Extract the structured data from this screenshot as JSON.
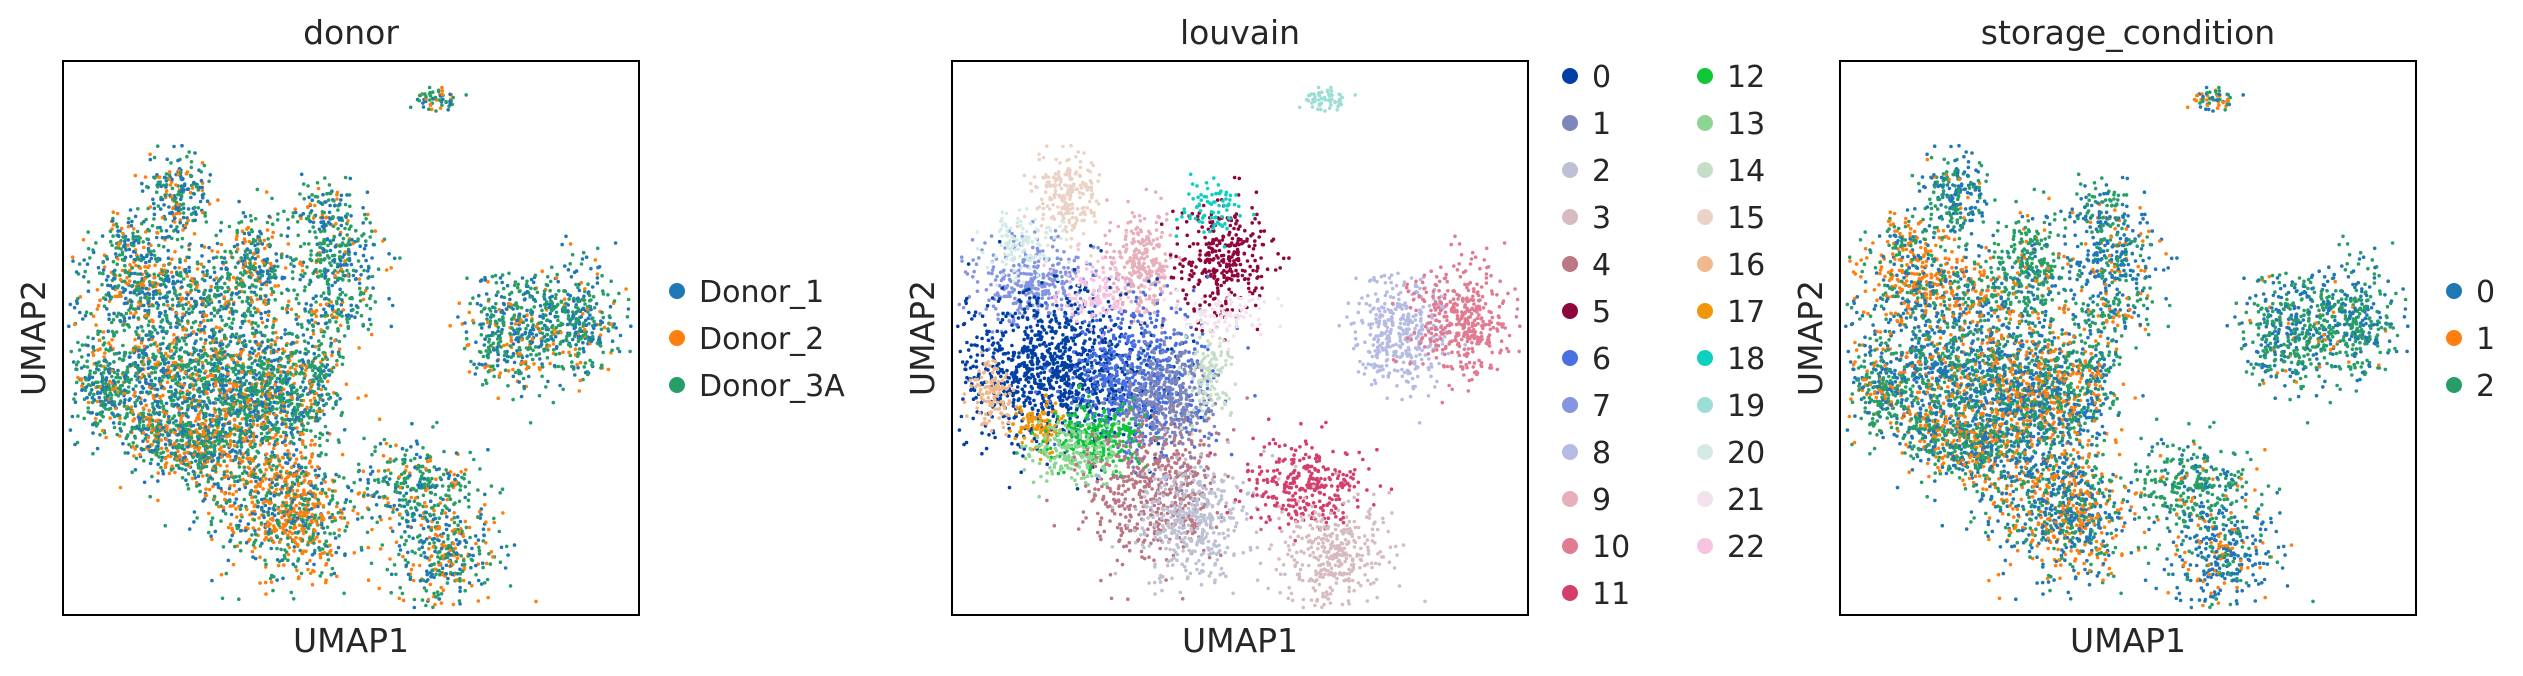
{
  "chart_data": [
    {
      "type": "scatter",
      "title": "donor",
      "xlabel": "UMAP1",
      "ylabel": "UMAP2",
      "grid": false,
      "legend_position": "right",
      "series": [
        {
          "name": "Donor_1",
          "color": "#1f77b4"
        },
        {
          "name": "Donor_2",
          "color": "#ff7f0e"
        },
        {
          "name": "Donor_3A",
          "color": "#279e68"
        }
      ]
    },
    {
      "type": "scatter",
      "title": "louvain",
      "xlabel": "UMAP1",
      "ylabel": "UMAP2",
      "grid": false,
      "legend_position": "right",
      "series": [
        {
          "name": "0",
          "color": "#023fa5"
        },
        {
          "name": "1",
          "color": "#7d87b9"
        },
        {
          "name": "2",
          "color": "#bec1d4"
        },
        {
          "name": "3",
          "color": "#d6bcc0"
        },
        {
          "name": "4",
          "color": "#bb7784"
        },
        {
          "name": "5",
          "color": "#8e063b"
        },
        {
          "name": "6",
          "color": "#4a6fe3"
        },
        {
          "name": "7",
          "color": "#8595e1"
        },
        {
          "name": "8",
          "color": "#b5bbe3"
        },
        {
          "name": "9",
          "color": "#e6afb9"
        },
        {
          "name": "10",
          "color": "#e07b91"
        },
        {
          "name": "11",
          "color": "#d33f6a"
        },
        {
          "name": "12",
          "color": "#11c638"
        },
        {
          "name": "13",
          "color": "#8dd593"
        },
        {
          "name": "14",
          "color": "#c6dec7"
        },
        {
          "name": "15",
          "color": "#ead3c6"
        },
        {
          "name": "16",
          "color": "#f0b98d"
        },
        {
          "name": "17",
          "color": "#ef9708"
        },
        {
          "name": "18",
          "color": "#0fcfc0"
        },
        {
          "name": "19",
          "color": "#9cded6"
        },
        {
          "name": "20",
          "color": "#d5eae7"
        },
        {
          "name": "21",
          "color": "#f3e1eb"
        },
        {
          "name": "22",
          "color": "#f6c4e1"
        }
      ]
    },
    {
      "type": "scatter",
      "title": "storage_condition",
      "xlabel": "UMAP1",
      "ylabel": "UMAP2",
      "grid": false,
      "legend_position": "right",
      "series": [
        {
          "name": "0",
          "color": "#1f77b4"
        },
        {
          "name": "1",
          "color": "#ff7f0e"
        },
        {
          "name": "2",
          "color": "#279e68"
        }
      ]
    }
  ]
}
